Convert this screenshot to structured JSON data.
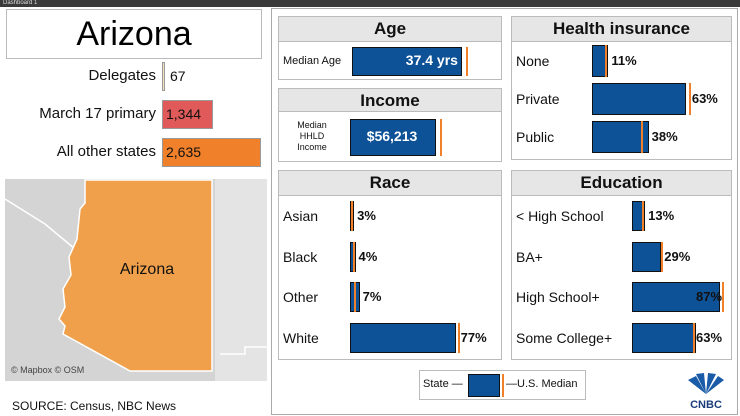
{
  "tab": "Dashboard 1",
  "state": "Arizona",
  "delegates": {
    "rows": [
      {
        "label": "Delegates",
        "value": 67,
        "value_label": "67",
        "color": "#f3e3c3"
      },
      {
        "label": "March 17 primary",
        "value": 1344,
        "value_label": "1,344",
        "color": "#e05a5a"
      },
      {
        "label": "All other states",
        "value": 2635,
        "value_label": "2,635",
        "color": "#f0802a"
      }
    ]
  },
  "map": {
    "label": "Arizona",
    "credit": "© Mapbox © OSM"
  },
  "source": "SOURCE: Census, NBC News",
  "age": {
    "title": "Age",
    "rows": [
      {
        "label": "Median Age",
        "value": 37.4,
        "value_label": "37.4 yrs",
        "us_median": 38.9
      }
    ]
  },
  "income": {
    "title": "Income",
    "rows": [
      {
        "label": "Median HHLD Income",
        "value": 56213,
        "value_label": "$56,213",
        "us_median": 58800
      }
    ]
  },
  "health_insurance": {
    "title": "Health insurance",
    "rows": [
      {
        "label": "None",
        "value": 11,
        "value_label": "11%",
        "us_median": 9
      },
      {
        "label": "Private",
        "value": 63,
        "value_label": "63%",
        "us_median": 65
      },
      {
        "label": "Public",
        "value": 38,
        "value_label": "38%",
        "us_median": 33
      }
    ]
  },
  "race": {
    "title": "Race",
    "rows": [
      {
        "label": "Asian",
        "value": 3,
        "value_label": "3%",
        "us_median": 1
      },
      {
        "label": "Black",
        "value": 4,
        "value_label": "4%",
        "us_median": 2
      },
      {
        "label": "Other",
        "value": 7,
        "value_label": "7%",
        "us_median": 3
      },
      {
        "label": "White",
        "value": 77,
        "value_label": "77%",
        "us_median": 78
      }
    ]
  },
  "education": {
    "title": "Education",
    "rows": [
      {
        "label": "< High School",
        "value": 13,
        "value_label": "13%",
        "us_median": 10
      },
      {
        "label": "BA+",
        "value": 29,
        "value_label": "29%",
        "us_median": 29
      },
      {
        "label": "High School+",
        "value": 87,
        "value_label": "87%",
        "us_median": 89
      },
      {
        "label": "Some College+",
        "value": 63,
        "value_label": "63%",
        "us_median": 60
      }
    ]
  },
  "legend": {
    "state": "State —",
    "median": "—U.S. Median"
  },
  "logo": "CNBC"
}
